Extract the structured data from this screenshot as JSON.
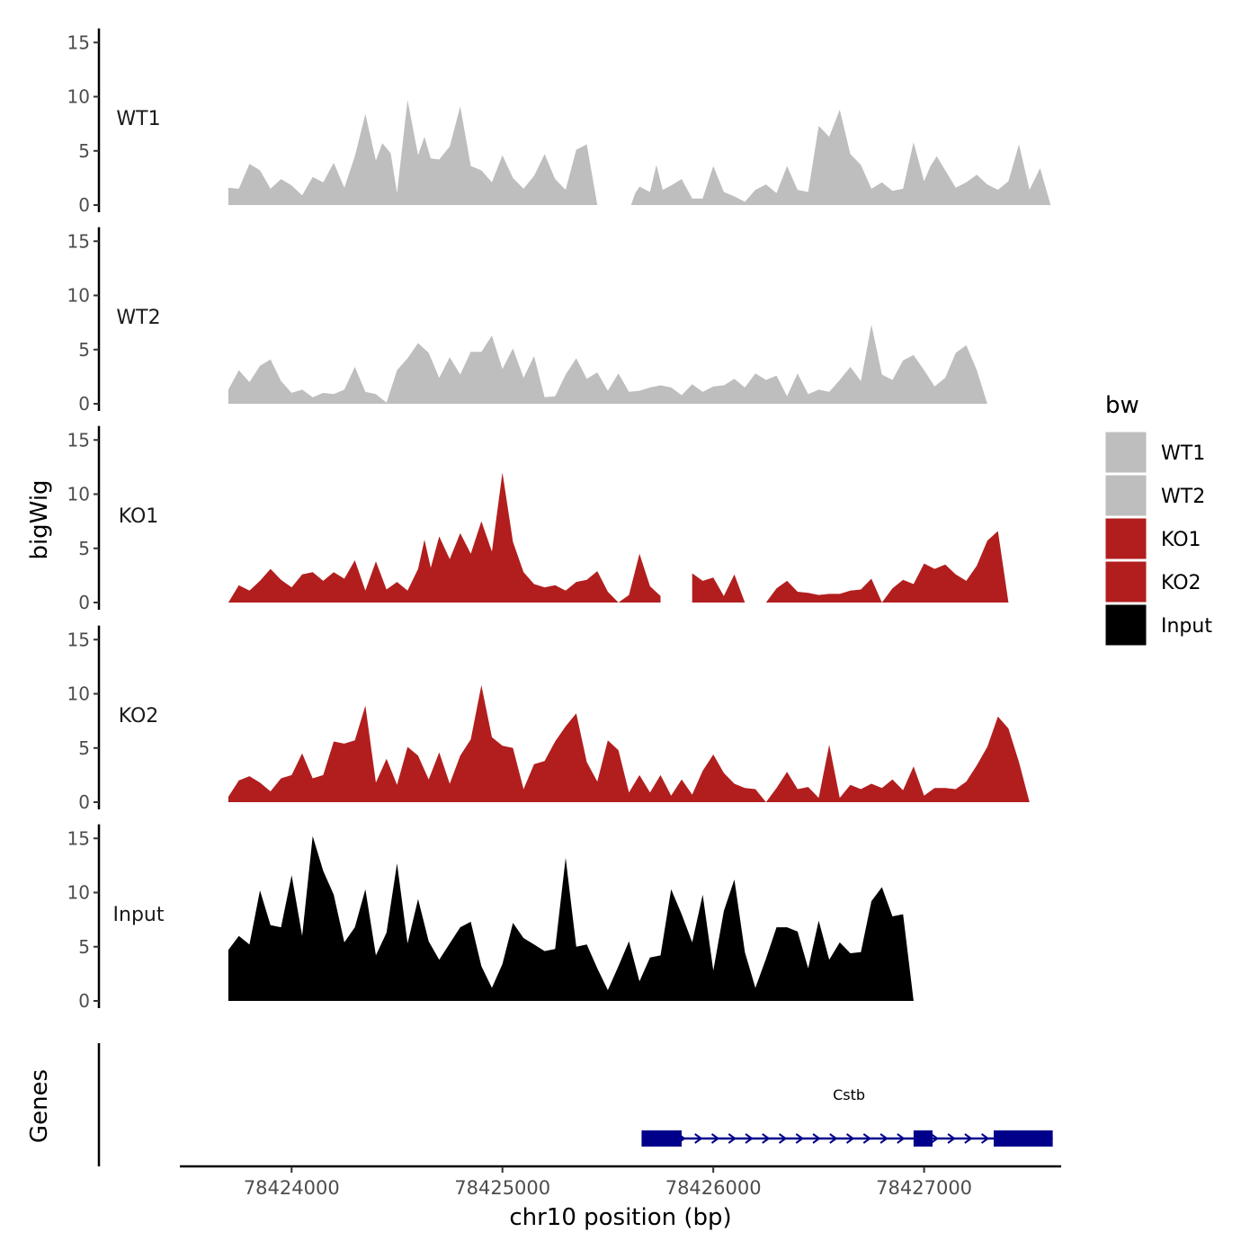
{
  "chart_data": {
    "type": "area",
    "title": "",
    "xlabel": "chr10 position (bp)",
    "ylabel": "bigWig",
    "genes_label": "Genes",
    "xlim": [
      78423470,
      78427650
    ],
    "x_ticks": [
      78424000,
      78425000,
      78426000,
      78427000
    ],
    "x_tick_labels": [
      "78424000",
      "78425000",
      "78426000",
      "78427000"
    ],
    "ylim": [
      0,
      16
    ],
    "y_ticks": [
      0,
      5,
      10,
      15
    ],
    "y_tick_labels": [
      "0",
      "5",
      "10",
      "15"
    ],
    "legend": {
      "title": "bw",
      "placement": "right",
      "entries": [
        {
          "label": "WT1",
          "color": "#bebebe"
        },
        {
          "label": "WT2",
          "color": "#bebebe"
        },
        {
          "label": "KO1",
          "color": "#b21e1e"
        },
        {
          "label": "KO2",
          "color": "#b21e1e"
        },
        {
          "label": "Input",
          "color": "#000000"
        }
      ]
    },
    "series": [
      {
        "name": "WT1",
        "color": "#bebebe",
        "x": [
          78423700,
          78423750,
          78423800,
          78423850,
          78423900,
          78423950,
          78424000,
          78424050,
          78424100,
          78424150,
          78424200,
          78424250,
          78424300,
          78424350,
          78424400,
          78424430,
          78424470,
          78424500,
          78424550,
          78424600,
          78424630,
          78424660,
          78424700,
          78424750,
          78424800,
          78424850,
          78424900,
          78424950,
          78425000,
          78425050,
          78425100,
          78425150,
          78425200,
          78425250,
          78425300,
          78425350,
          78425400,
          78425450,
          78425500,
          78425550,
          78425580,
          78425600,
          78425610,
          78425630,
          78425650,
          78425700,
          78425730,
          78425760,
          78425800,
          78425850,
          78425900,
          78425950,
          78426000,
          78426050,
          78426100,
          78426150,
          78426200,
          78426250,
          78426300,
          78426350,
          78426400,
          78426450,
          78426500,
          78426550,
          78426600,
          78426650,
          78426700,
          78426750,
          78426800,
          78426850,
          78426900,
          78426950,
          78427000,
          78427030,
          78427060,
          78427100,
          78427150,
          78427200,
          78427250,
          78427300,
          78427350,
          78427400,
          78427450,
          78427500,
          78427550,
          78427600
        ],
        "y": [
          1.6,
          1.5,
          3.8,
          3.2,
          1.5,
          2.4,
          1.8,
          0.9,
          2.6,
          2.1,
          3.9,
          1.6,
          4.5,
          8.4,
          4.1,
          5.7,
          4.8,
          1.1,
          9.7,
          4.6,
          6.3,
          4.3,
          4.2,
          5.4,
          9.1,
          3.6,
          3.2,
          2.1,
          4.6,
          2.5,
          1.5,
          2.7,
          4.7,
          2.4,
          1.4,
          5.1,
          5.6,
          0,
          null,
          null,
          null,
          null,
          0,
          1.1,
          1.7,
          1.2,
          3.7,
          1.4,
          1.8,
          2.4,
          0.6,
          0.6,
          3.6,
          1.2,
          0.8,
          0.3,
          1.4,
          1.9,
          1.1,
          3.6,
          1.4,
          1.2,
          7.3,
          6.3,
          8.8,
          4.7,
          3.7,
          1.5,
          2.1,
          1.3,
          1.5,
          5.8,
          2.2,
          3.6,
          4.5,
          3.2,
          1.6,
          2.1,
          2.8,
          1.9,
          1.4,
          2.2,
          5.6,
          1.4,
          3.4,
          0
        ],
        "gaps": [
          [
            78425620,
            78425690
          ]
        ]
      },
      {
        "name": "WT2",
        "color": "#bebebe",
        "x": [
          78423700,
          78423750,
          78423800,
          78423850,
          78423900,
          78423950,
          78424000,
          78424050,
          78424100,
          78424150,
          78424200,
          78424250,
          78424300,
          78424350,
          78424400,
          78424450,
          78424500,
          78424550,
          78424600,
          78424650,
          78424700,
          78424750,
          78424800,
          78424850,
          78424900,
          78424950,
          78425000,
          78425050,
          78425100,
          78425150,
          78425200,
          78425250,
          78425300,
          78425350,
          78425400,
          78425450,
          78425500,
          78425550,
          78425600,
          78425650,
          78425700,
          78425750,
          78425800,
          78425850,
          78425900,
          78425950,
          78426000,
          78426050,
          78426100,
          78426150,
          78426200,
          78426250,
          78426300,
          78426350,
          78426400,
          78426450,
          78426500,
          78426550,
          78426600,
          78426650,
          78426700,
          78426750,
          78426800,
          78426850,
          78426900,
          78426950,
          78427000,
          78427050,
          78427100,
          78427150,
          78427200,
          78427250,
          78427300,
          78427350,
          78427400,
          78427450,
          78427500,
          78427550,
          78427600
        ],
        "y": [
          1.3,
          3.1,
          2.0,
          3.5,
          4.1,
          2.1,
          1.0,
          1.3,
          0.6,
          1.0,
          0.9,
          1.3,
          3.4,
          1.1,
          0.9,
          0.1,
          3.1,
          4.2,
          5.6,
          4.7,
          2.4,
          4.3,
          2.7,
          4.8,
          4.8,
          6.3,
          3.2,
          5.1,
          2.4,
          4.4,
          0.6,
          0.7,
          2.7,
          4.2,
          2.3,
          2.9,
          1.2,
          2.8,
          1.1,
          1.2,
          1.5,
          1.7,
          1.5,
          0.8,
          1.8,
          1.1,
          1.6,
          1.7,
          2.3,
          1.5,
          2.8,
          2.2,
          2.6,
          0.7,
          2.8,
          0.9,
          1.3,
          1.1,
          2.2,
          3.4,
          2.1,
          7.3,
          2.7,
          2.2,
          4.0,
          4.5,
          3.1,
          1.6,
          2.4,
          4.7,
          5.4,
          3.1,
          0,
          0,
          0,
          0,
          0,
          0,
          0
        ]
      },
      {
        "name": "KO1",
        "color": "#b21e1e",
        "x": [
          78423700,
          78423750,
          78423800,
          78423850,
          78423900,
          78423950,
          78424000,
          78424050,
          78424100,
          78424150,
          78424200,
          78424250,
          78424300,
          78424350,
          78424400,
          78424450,
          78424500,
          78424550,
          78424600,
          78424630,
          78424660,
          78424700,
          78424750,
          78424800,
          78424850,
          78424900,
          78424950,
          78425000,
          78425050,
          78425100,
          78425150,
          78425200,
          78425250,
          78425300,
          78425350,
          78425400,
          78425450,
          78425500,
          78425550,
          78425600,
          78425650,
          78425700,
          78425750,
          78425800,
          78425850,
          78425900,
          78425950,
          78426000,
          78426050,
          78426100,
          78426150,
          78426200,
          78426250,
          78426300,
          78426350,
          78426400,
          78426450,
          78426500,
          78426550,
          78426600,
          78426650,
          78426700,
          78426750,
          78426800,
          78426850,
          78426900,
          78426950,
          78427000,
          78427050,
          78427100,
          78427150,
          78427200,
          78427250,
          78427300,
          78427350,
          78427400,
          78427450,
          78427500,
          78427550,
          78427600
        ],
        "y": [
          0,
          1.6,
          1.1,
          2.0,
          3.1,
          2.1,
          1.4,
          2.6,
          2.8,
          2.0,
          2.8,
          2.2,
          3.9,
          1.1,
          3.8,
          1.2,
          1.9,
          1.1,
          3.1,
          5.8,
          3.2,
          6.1,
          4.0,
          6.4,
          4.5,
          7.5,
          4.7,
          12.0,
          5.6,
          2.8,
          1.7,
          1.4,
          1.6,
          1.1,
          1.9,
          2.1,
          2.9,
          1.0,
          0,
          0.7,
          4.5,
          1.5,
          0.6,
          null,
          0,
          2.7,
          2.0,
          2.3,
          0.6,
          2.6,
          0,
          0,
          0,
          1.3,
          2.0,
          1.0,
          0.9,
          0.7,
          0.8,
          0.8,
          1.1,
          1.2,
          2.2,
          0,
          1.3,
          2.1,
          1.7,
          3.6,
          3.1,
          3.5,
          2.6,
          2.0,
          3.4,
          5.7,
          6.6,
          0,
          0,
          0,
          0,
          0
        ],
        "gaps": [
          [
            78425850,
            78425880
          ],
          [
            78426110,
            78426180
          ],
          [
            78426530,
            78426620
          ],
          [
            78427180,
            78427220
          ]
        ]
      },
      {
        "name": "KO2",
        "color": "#b21e1e",
        "x": [
          78423700,
          78423750,
          78423800,
          78423850,
          78423900,
          78423950,
          78424000,
          78424050,
          78424100,
          78424150,
          78424200,
          78424250,
          78424300,
          78424350,
          78424400,
          78424450,
          78424500,
          78424550,
          78424600,
          78424650,
          78424700,
          78424750,
          78424800,
          78424850,
          78424900,
          78424950,
          78425000,
          78425050,
          78425100,
          78425150,
          78425200,
          78425250,
          78425300,
          78425350,
          78425400,
          78425450,
          78425500,
          78425550,
          78425600,
          78425650,
          78425700,
          78425750,
          78425800,
          78425850,
          78425900,
          78425950,
          78426000,
          78426050,
          78426100,
          78426150,
          78426200,
          78426250,
          78426300,
          78426350,
          78426400,
          78426450,
          78426500,
          78426550,
          78426600,
          78426650,
          78426700,
          78426750,
          78426800,
          78426850,
          78426900,
          78426950,
          78427000,
          78427050,
          78427100,
          78427150,
          78427200,
          78427250,
          78427300,
          78427350,
          78427400,
          78427450,
          78427500,
          78427550,
          78427600
        ],
        "y": [
          0.5,
          2.0,
          2.4,
          1.8,
          1.0,
          2.2,
          2.5,
          4.5,
          2.2,
          2.5,
          5.6,
          5.4,
          5.7,
          8.9,
          1.8,
          4.0,
          1.6,
          5.1,
          4.3,
          2.1,
          4.6,
          1.7,
          4.3,
          5.8,
          10.8,
          6.0,
          5.2,
          5.0,
          1.2,
          3.5,
          3.8,
          5.6,
          7.0,
          8.2,
          3.7,
          1.9,
          5.7,
          4.8,
          0.9,
          2.5,
          0.9,
          2.5,
          0.6,
          2.1,
          0.7,
          2.9,
          4.4,
          2.7,
          1.7,
          1.3,
          1.2,
          0,
          1.3,
          2.8,
          1.2,
          1.4,
          0.4,
          5.3,
          0.4,
          1.6,
          1.2,
          1.7,
          1.3,
          2.1,
          1.1,
          3.3,
          0.6,
          1.3,
          1.3,
          1.2,
          1.9,
          3.4,
          5.1,
          7.9,
          6.8,
          3.7,
          0,
          0,
          0
        ],
        "gaps": []
      },
      {
        "name": "Input",
        "color": "#000000",
        "x": [
          78423700,
          78423750,
          78423800,
          78423850,
          78423900,
          78423950,
          78424000,
          78424050,
          78424100,
          78424150,
          78424200,
          78424250,
          78424300,
          78424350,
          78424400,
          78424450,
          78424500,
          78424550,
          78424600,
          78424650,
          78424700,
          78424750,
          78424800,
          78424850,
          78424900,
          78424950,
          78425000,
          78425050,
          78425100,
          78425150,
          78425200,
          78425250,
          78425300,
          78425350,
          78425400,
          78425450,
          78425500,
          78425550,
          78425600,
          78425650,
          78425700,
          78425750,
          78425800,
          78425850,
          78425900,
          78425950,
          78426000,
          78426050,
          78426100,
          78426150,
          78426200,
          78426250,
          78426300,
          78426350,
          78426400,
          78426450,
          78426500,
          78426550,
          78426600,
          78426650,
          78426700,
          78426750,
          78426800,
          78426850,
          78426900,
          78426950,
          78427000,
          78427050,
          78427100,
          78427150,
          78427200,
          78427250,
          78427300,
          78427350,
          78427400,
          78427450,
          78427500,
          78427550,
          78427600
        ],
        "y": [
          4.7,
          6.0,
          5.2,
          10.2,
          7.0,
          6.8,
          11.6,
          6.0,
          15.2,
          12.0,
          9.8,
          5.4,
          6.8,
          10.3,
          4.2,
          6.3,
          12.7,
          5.3,
          9.4,
          5.5,
          3.8,
          5.3,
          6.8,
          7.3,
          3.2,
          1.2,
          3.4,
          7.2,
          5.8,
          5.2,
          4.6,
          4.8,
          13.2,
          5.0,
          5.2,
          3.0,
          1.0,
          3.2,
          5.5,
          1.8,
          4.0,
          4.2,
          10.3,
          8.0,
          5.4,
          9.8,
          2.8,
          8.3,
          11.2,
          4.5,
          1.2,
          3.9,
          6.8,
          6.8,
          6.4,
          3.0,
          7.4,
          3.8,
          5.4,
          4.4,
          4.5,
          9.2,
          10.5,
          7.8,
          8.0,
          0,
          0,
          0,
          0,
          0,
          0,
          0,
          0,
          0,
          0,
          0,
          0,
          0,
          0
        ]
      }
    ],
    "gene": {
      "name": "Cstb",
      "strand": "+",
      "start": 78425660,
      "end": 78427610,
      "color": "#00008b",
      "exons": [
        [
          78425660,
          78425850
        ],
        [
          78426950,
          78427040
        ],
        [
          78427330,
          78427610
        ]
      ]
    }
  }
}
